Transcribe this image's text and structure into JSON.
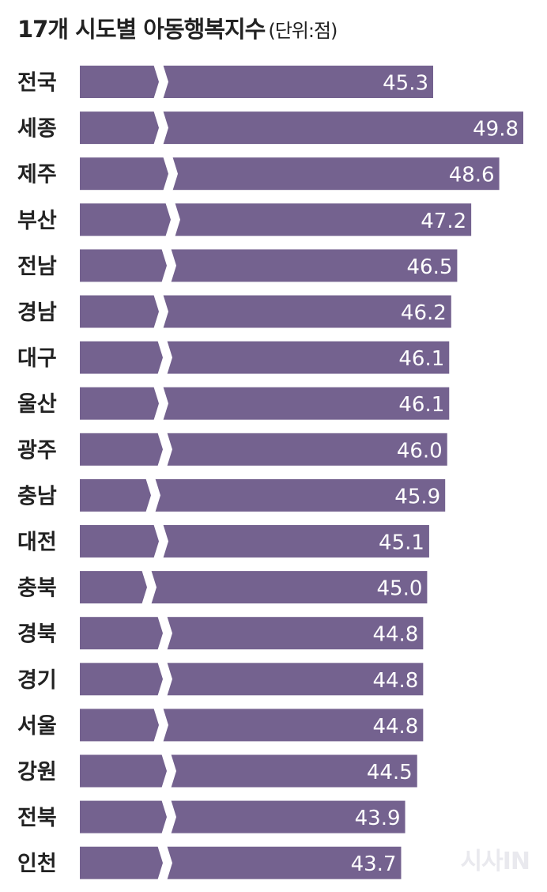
{
  "chart_data": {
    "type": "bar",
    "orientation": "horizontal",
    "title": "17개 시도별 아동행복지수",
    "unit": "(단위:점)",
    "categories": [
      "전국",
      "세종",
      "제주",
      "부산",
      "전남",
      "경남",
      "대구",
      "울산",
      "광주",
      "충남",
      "대전",
      "충북",
      "경북",
      "경기",
      "서울",
      "강원",
      "전북",
      "인천"
    ],
    "values": [
      45.3,
      49.8,
      48.6,
      47.2,
      46.5,
      46.2,
      46.1,
      46.1,
      46.0,
      45.9,
      45.1,
      45.0,
      44.8,
      44.8,
      44.8,
      44.5,
      43.9,
      43.7
    ],
    "value_labels": [
      "45.3",
      "49.8",
      "48.6",
      "47.2",
      "46.5",
      "46.2",
      "46.1",
      "46.1",
      "46.0",
      "45.9",
      "45.1",
      "45.0",
      "44.8",
      "44.8",
      "44.8",
      "44.5",
      "43.9",
      "43.7"
    ],
    "axis_break": true,
    "grid": false,
    "legend": "none",
    "colors": {
      "bar": "#74628f",
      "value_text": "#ffffff",
      "label_text": "#222222"
    }
  },
  "watermark": "시사IN"
}
